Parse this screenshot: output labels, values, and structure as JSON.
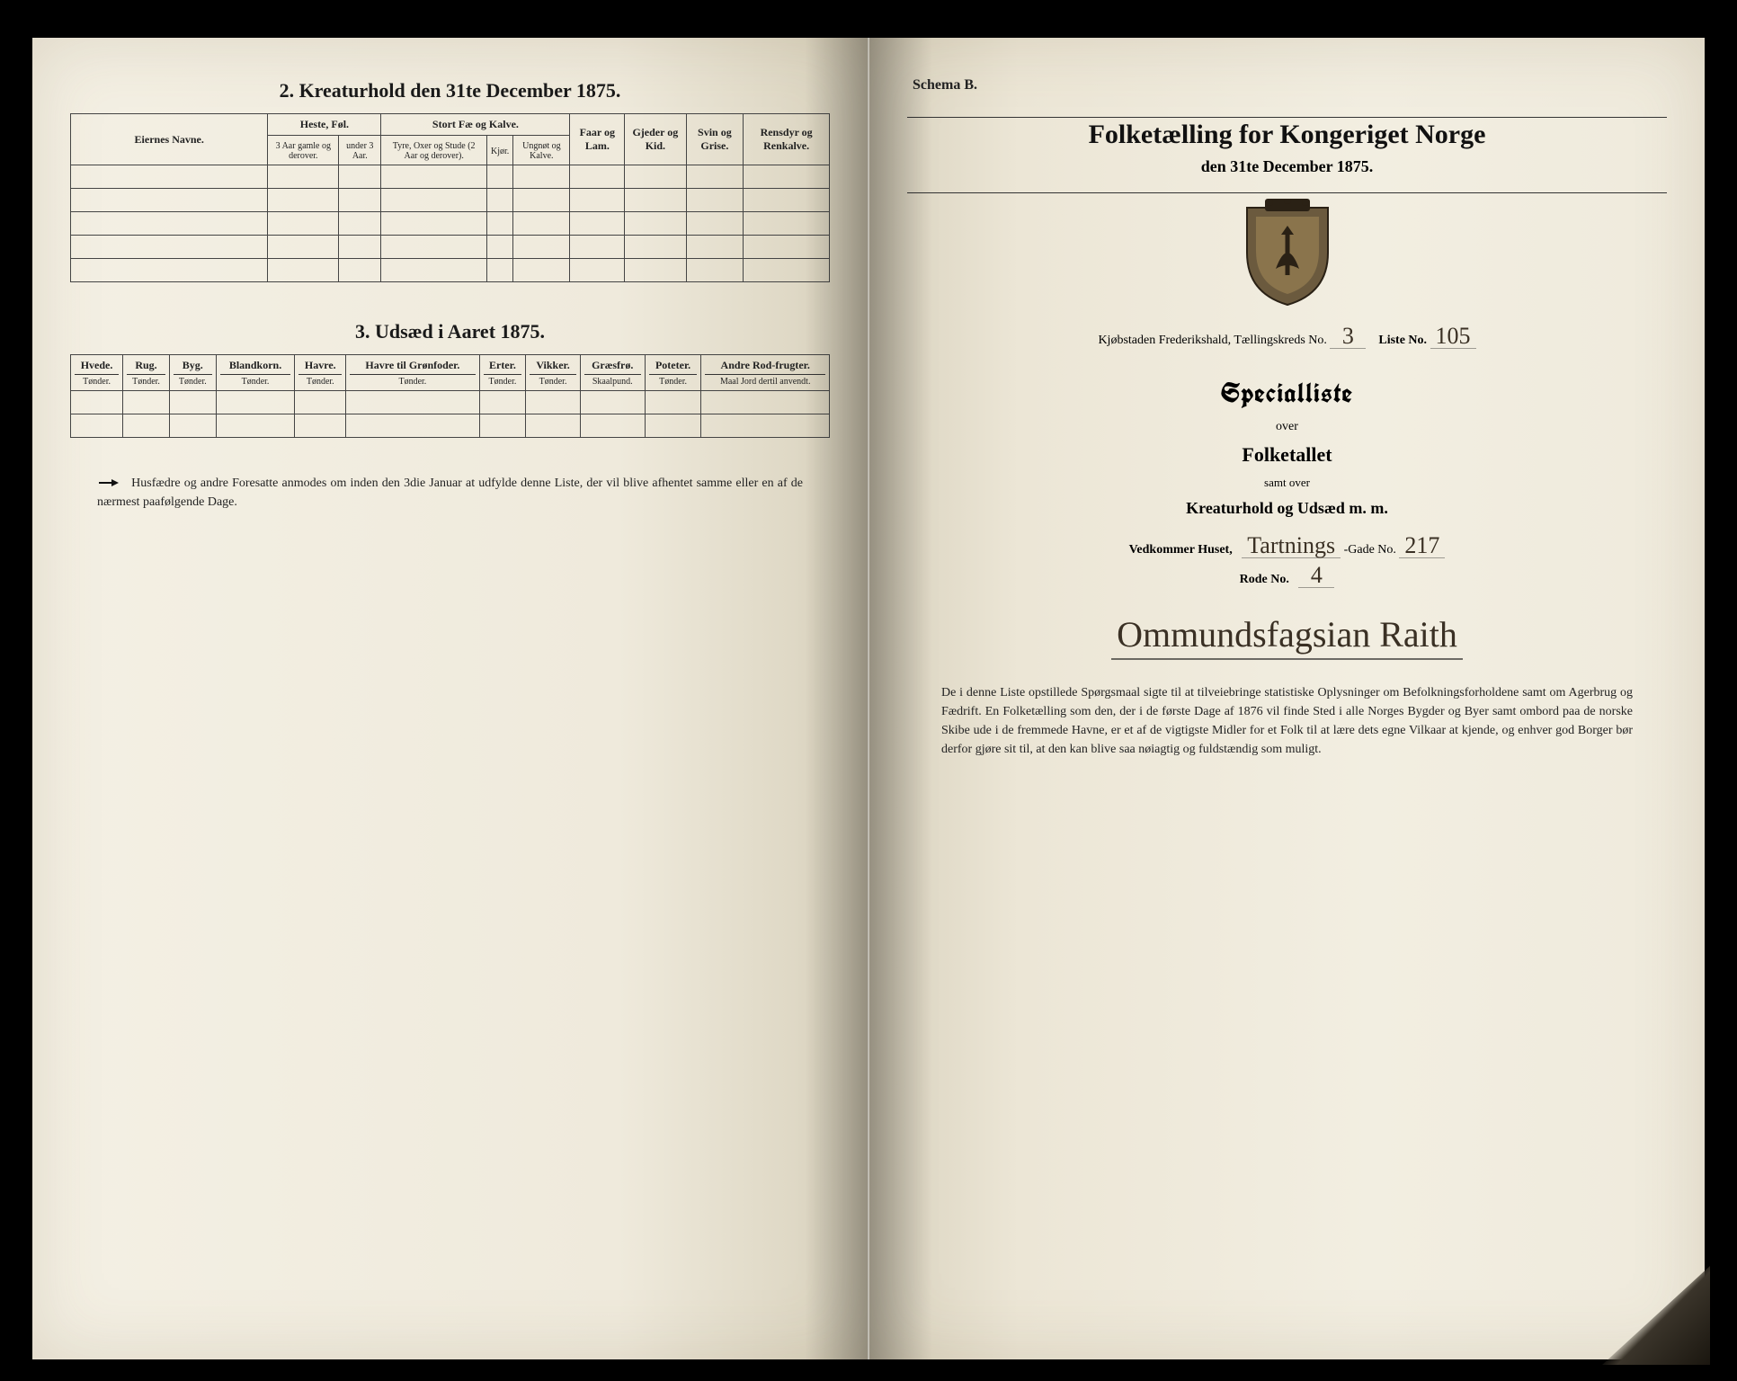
{
  "left_page": {
    "section2": {
      "title": "2.  Kreaturhold den 31te December 1875.",
      "col_eiernes": "Eiernes Navne.",
      "grp_heste": "Heste, Føl.",
      "grp_stort": "Stort Fæ og Kalve.",
      "grp_faar": "Faar og Lam.",
      "grp_gjeder": "Gjeder og Kid.",
      "grp_svin": "Svin og Grise.",
      "grp_rensdyr": "Rensdyr og Renkalve.",
      "sub_heste_a": "3 Aar gamle og derover.",
      "sub_heste_b": "under 3 Aar.",
      "sub_stort_a": "Tyre, Oxer og Stude (2 Aar og derover).",
      "sub_stort_b": "Kjør.",
      "sub_stort_c": "Ungnøt og Kalve."
    },
    "section3": {
      "title": "3.  Udsæd i Aaret 1875.",
      "cols": [
        {
          "h": "Hvede.",
          "s": "Tønder."
        },
        {
          "h": "Rug.",
          "s": "Tønder."
        },
        {
          "h": "Byg.",
          "s": "Tønder."
        },
        {
          "h": "Blandkorn.",
          "s": "Tønder."
        },
        {
          "h": "Havre.",
          "s": "Tønder."
        },
        {
          "h": "Havre til Grønfoder.",
          "s": "Tønder."
        },
        {
          "h": "Erter.",
          "s": "Tønder."
        },
        {
          "h": "Vikker.",
          "s": "Tønder."
        },
        {
          "h": "Græsfrø.",
          "s": "Skaalpund."
        },
        {
          "h": "Poteter.",
          "s": "Tønder."
        },
        {
          "h": "Andre Rod-frugter.",
          "s": "Maal Jord dertil anvendt."
        }
      ]
    },
    "footnote": "Husfædre og andre Foresatte anmodes om inden den 3die Januar at udfylde denne Liste, der vil blive afhentet samme eller en af de nærmest paafølgende Dage."
  },
  "right_page": {
    "schema_label": "Schema B.",
    "title": "Folketælling for Kongeriget Norge",
    "date_line": "den 31te December 1875.",
    "town_line_prefix": "Kjøbstaden Frederikshald,   Tællingskreds No.",
    "kreds_no": "3",
    "liste_label": "Liste No.",
    "liste_no": "105",
    "special_title": "Specialliste",
    "over": "over",
    "folketallet": "Folketallet",
    "samt_over": "samt over",
    "kreatur_line": "Kreaturhold og Udsæd m. m.",
    "vedk_prefix": "Vedkommer Huset,",
    "gade_hand": "Tartnings",
    "gade_label": "-Gade No.",
    "gade_no": "217",
    "rode_label": "Rode No.",
    "rode_no": "4",
    "signature": "Ommundsfagsian Raith",
    "small_print": "De i denne Liste opstillede Spørgsmaal sigte til at tilveiebringe statistiske Oplysninger om Befolkningsforholdene samt om Agerbrug og Fædrift.  En Folketælling som den, der i de første Dage af 1876 vil finde Sted i alle Norges Bygder og Byer samt ombord paa de norske Skibe ude i de fremmede Havne, er et af de vigtigste Midler for et Folk til at lære dets egne Vilkaar at kjende, og enhver god Borger bør derfor gjøre sit til, at den kan blive saa nøiagtig og fuldstændig som muligt."
  },
  "colors": {
    "ink": "#1a1a1a",
    "paper": "#efeadc",
    "handwriting": "#3a3024"
  }
}
